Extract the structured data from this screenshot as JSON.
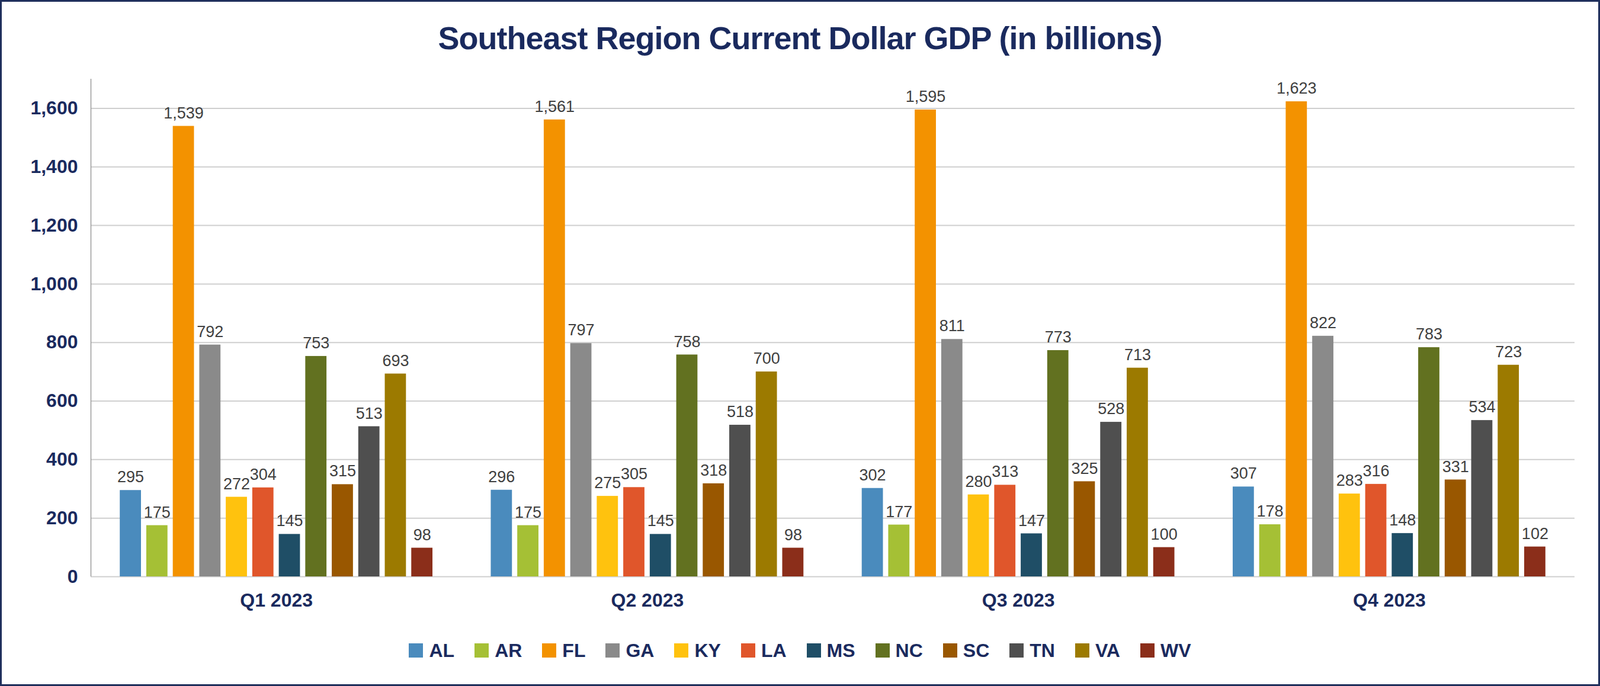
{
  "chart_data": {
    "type": "bar",
    "title": "Southeast Region Current Dollar GDP (in billions)",
    "categories": [
      "Q1 2023",
      "Q2 2023",
      "Q3 2023",
      "Q4 2023"
    ],
    "series": [
      {
        "name": "AL",
        "color": "#4a8bbd",
        "values": [
          295,
          296,
          302,
          307
        ]
      },
      {
        "name": "AR",
        "color": "#a5c035",
        "values": [
          175,
          175,
          177,
          178
        ]
      },
      {
        "name": "FL",
        "color": "#f39200",
        "values": [
          1539,
          1561,
          1595,
          1623
        ],
        "value_labels": [
          "1,539",
          "1,561",
          "1,595",
          "1,623"
        ]
      },
      {
        "name": "GA",
        "color": "#8a8a8a",
        "values": [
          792,
          797,
          811,
          822
        ]
      },
      {
        "name": "KY",
        "color": "#ffc20e",
        "values": [
          272,
          275,
          280,
          283
        ]
      },
      {
        "name": "LA",
        "color": "#e0562b",
        "values": [
          304,
          305,
          313,
          316
        ]
      },
      {
        "name": "MS",
        "color": "#1f4e66",
        "values": [
          145,
          145,
          147,
          148
        ]
      },
      {
        "name": "NC",
        "color": "#627120",
        "values": [
          753,
          758,
          773,
          783
        ]
      },
      {
        "name": "SC",
        "color": "#995700",
        "values": [
          315,
          318,
          325,
          331
        ]
      },
      {
        "name": "TN",
        "color": "#4f4f4f",
        "values": [
          513,
          518,
          528,
          534
        ]
      },
      {
        "name": "VA",
        "color": "#9c7a00",
        "values": [
          693,
          700,
          713,
          723
        ]
      },
      {
        "name": "WV",
        "color": "#8b2e1a",
        "values": [
          98,
          98,
          100,
          102
        ]
      }
    ],
    "ylim": [
      0,
      1700
    ],
    "yticks": [
      0,
      200,
      400,
      600,
      800,
      {
        "value": 1000,
        "label": "1,000"
      },
      {
        "value": 1200,
        "label": "1,200"
      },
      {
        "value": 1400,
        "label": "1,400"
      },
      {
        "value": 1600,
        "label": "1,600"
      }
    ],
    "grid": true,
    "legend": "bottom",
    "data_labels": true
  }
}
